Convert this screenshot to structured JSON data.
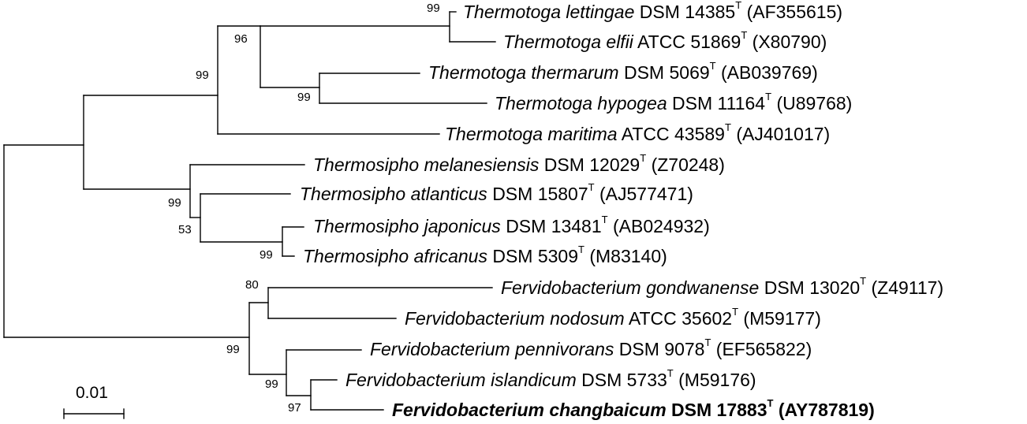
{
  "tree": {
    "taxa": [
      {
        "genus_species": "Thermotoga lettingae",
        "strain": "DSM 14385",
        "type_mark": "T",
        "accession": "(AF355615)"
      },
      {
        "genus_species": "Thermotoga elfii",
        "strain": "ATCC 51869",
        "type_mark": "T",
        "accession": "(X80790)"
      },
      {
        "genus_species": "Thermotoga thermarum",
        "strain": "DSM 5069",
        "type_mark": "T",
        "accession": "(AB039769)"
      },
      {
        "genus_species": "Thermotoga hypogea",
        "strain": "DSM 11164",
        "type_mark": "T",
        "accession": "(U89768)"
      },
      {
        "genus_species": "Thermotoga maritima",
        "strain": "ATCC 43589",
        "type_mark": "T",
        "accession": "(AJ401017)"
      },
      {
        "genus_species": "Thermosipho melanesiensis",
        "strain": "DSM 12029",
        "type_mark": "T",
        "accession": "(Z70248)"
      },
      {
        "genus_species": "Thermosipho atlanticus",
        "strain": "DSM 15807",
        "type_mark": "T",
        "accession": "(AJ577471)"
      },
      {
        "genus_species": "Thermosipho japonicus",
        "strain": "DSM 13481",
        "type_mark": "T",
        "accession": "(AB024932)"
      },
      {
        "genus_species": "Thermosipho africanus",
        "strain": "DSM 5309",
        "type_mark": "T",
        "accession": "(M83140)"
      },
      {
        "genus_species": "Fervidobacterium gondwanense",
        "strain": "DSM 13020",
        "type_mark": "T",
        "accession": "(Z49117)"
      },
      {
        "genus_species": "Fervidobacterium nodosum",
        "strain": "ATCC 35602",
        "type_mark": "T",
        "accession": "(M59177)"
      },
      {
        "genus_species": "Fervidobacterium pennivorans",
        "strain": "DSM 9078",
        "type_mark": "T",
        "accession": "(EF565822)"
      },
      {
        "genus_species": "Fervidobacterium islandicum",
        "strain": "DSM 5733",
        "type_mark": "T",
        "accession": "(M59176)"
      },
      {
        "genus_species": "Fervidobacterium changbaicum",
        "strain": "DSM 17883",
        "type_mark": "T",
        "accession": "(AY787819)"
      }
    ],
    "bootstrap_values": [
      "99",
      "96",
      "99",
      "99",
      "99",
      "53",
      "99",
      "80",
      "99",
      "99",
      "97"
    ],
    "scale_bar": {
      "label": "0.01"
    }
  }
}
